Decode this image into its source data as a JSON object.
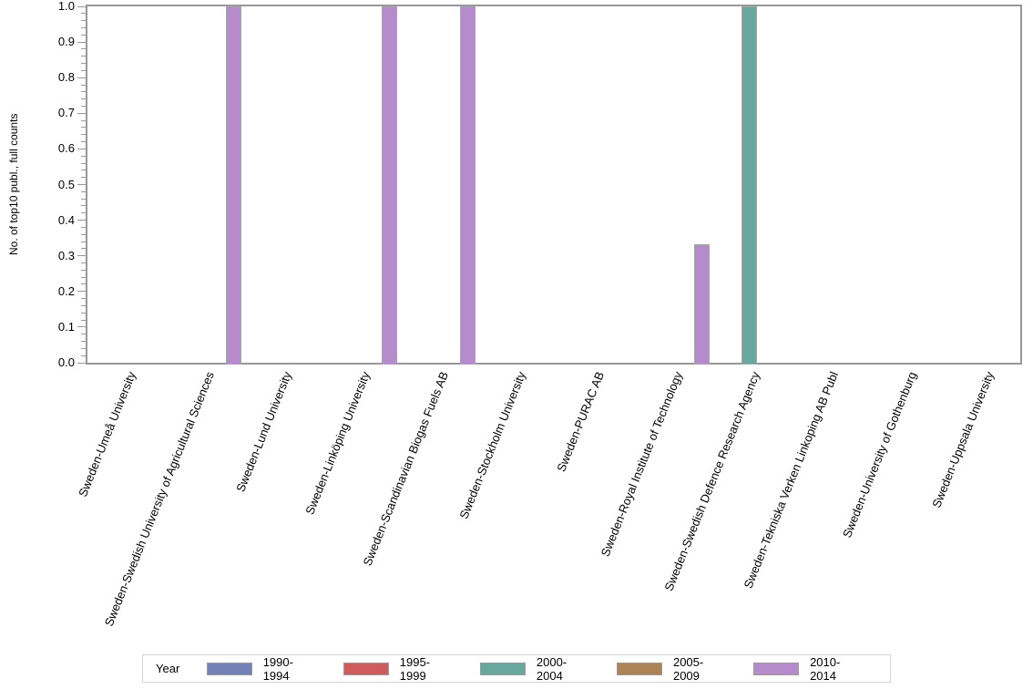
{
  "chart_data": {
    "type": "bar",
    "title": "",
    "xlabel": "",
    "ylabel": "No. of top10 publ., full counts",
    "ylim": [
      0,
      1.0
    ],
    "y_major_step": 0.1,
    "y_minor_per_major": 4,
    "y_tick_labels": [
      "0.0",
      "0.1",
      "0.2",
      "0.3",
      "0.4",
      "0.5",
      "0.6",
      "0.7",
      "0.8",
      "0.9",
      "1.0"
    ],
    "grid": false,
    "legend_title": "Year",
    "legend_position": "bottom",
    "categories": [
      "Sweden-Umeå University",
      "Sweden-Swedish University of Agricultural Sciences",
      "Sweden-Lund University",
      "Sweden-Linköping University",
      "Sweden-Scandinavian Biogas Fuels AB",
      "Sweden-Stockholm University",
      "Sweden-PURAC AB",
      "Sweden-Royal Institute of Technology",
      "Sweden-Swedish Defence Research Agency",
      "Sweden-Tekniska Verken Linkoping AB Publ",
      "Sweden-University of Gothenburg",
      "Sweden-Uppsala University"
    ],
    "series": [
      {
        "name": "1990-1994",
        "color": "#7282B8",
        "values": [
          0,
          0,
          0,
          0,
          0,
          0,
          0,
          0,
          0,
          0,
          0,
          0
        ]
      },
      {
        "name": "1995-1999",
        "color": "#CE5C5C",
        "values": [
          0,
          0,
          0,
          0,
          0,
          0,
          0,
          0,
          0,
          0,
          0,
          0
        ]
      },
      {
        "name": "2000-2004",
        "color": "#68A79D",
        "values": [
          0,
          0,
          0,
          0,
          0,
          0,
          0,
          0,
          1.0,
          0,
          0,
          0
        ]
      },
      {
        "name": "2005-2009",
        "color": "#AB8355",
        "values": [
          0,
          0,
          0,
          0,
          0,
          0,
          0,
          0,
          0,
          0,
          0,
          0
        ]
      },
      {
        "name": "2010-2014",
        "color": "#B58BCB",
        "values": [
          0,
          1.0,
          0,
          1.0,
          1.0,
          0,
          0,
          0.333,
          0,
          0,
          0,
          0
        ]
      }
    ],
    "colors": {
      "frame": "#95999C",
      "tick": "#95999C",
      "bar_border": "#A6A6A6",
      "legend_border": "#D3D3D3",
      "text": "#000000"
    }
  }
}
